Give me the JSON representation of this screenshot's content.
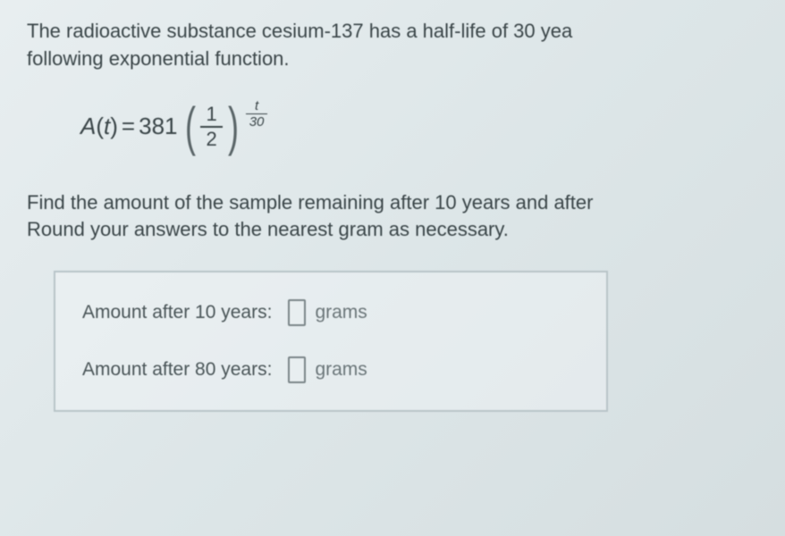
{
  "problem": {
    "line1": "The radioactive substance cesium-137 has a half-life of 30 yea",
    "line2": "following exponential function."
  },
  "formula": {
    "lhs_var": "A",
    "lhs_arg": "t",
    "equals": "=",
    "coefficient": "381",
    "base_num": "1",
    "base_den": "2",
    "exp_num": "t",
    "exp_den": "30"
  },
  "instruction": {
    "line1": "Find the amount of the sample remaining after 10 years and after",
    "line2": "Round your answers to the nearest gram as necessary."
  },
  "answers": {
    "row1_label": "Amount after 10 years:",
    "row1_unit": "grams",
    "row2_label": "Amount after 80 years:",
    "row2_unit": "grams"
  },
  "style": {
    "text_color": "#3a4548",
    "muted_color": "#6a7578",
    "border_color": "#b8c4c8",
    "input_border": "#7a8588",
    "bg_color": "#e8eef0",
    "body_fontsize": 22,
    "formula_fontsize": 26,
    "paren_fontsize": 60,
    "exp_fontsize": 15
  }
}
